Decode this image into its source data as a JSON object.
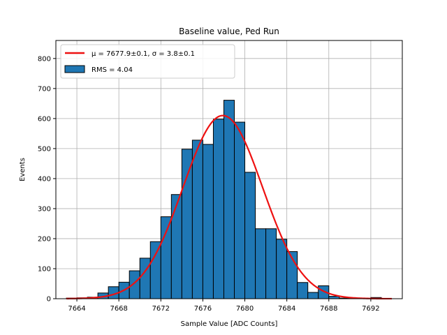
{
  "chart_data": {
    "type": "bar",
    "title": "Baseline value, Ped Run",
    "xlabel": "Sample Value [ADC Counts]",
    "ylabel": "Events",
    "xlim": [
      7662,
      7695
    ],
    "ylim": [
      0,
      860
    ],
    "grid": true,
    "xticks": [
      7664,
      7668,
      7672,
      7676,
      7680,
      7684,
      7688,
      7692
    ],
    "yticks": [
      0,
      100,
      200,
      300,
      400,
      500,
      600,
      700,
      800
    ],
    "bin_width": 1,
    "bins": [
      {
        "start": 7663,
        "value": 2
      },
      {
        "start": 7664,
        "value": 3
      },
      {
        "start": 7665,
        "value": 5
      },
      {
        "start": 7666,
        "value": 19
      },
      {
        "start": 7667,
        "value": 40
      },
      {
        "start": 7668,
        "value": 55
      },
      {
        "start": 7669,
        "value": 93
      },
      {
        "start": 7670,
        "value": 135
      },
      {
        "start": 7671,
        "value": 190
      },
      {
        "start": 7672,
        "value": 273
      },
      {
        "start": 7673,
        "value": 347
      },
      {
        "start": 7674,
        "value": 498
      },
      {
        "start": 7675,
        "value": 528
      },
      {
        "start": 7676,
        "value": 514
      },
      {
        "start": 7677,
        "value": 598
      },
      {
        "start": 7678,
        "value": 661
      },
      {
        "start": 7679,
        "value": 588
      },
      {
        "start": 7680,
        "value": 421
      },
      {
        "start": 7681,
        "value": 233
      },
      {
        "start": 7682,
        "value": 233
      },
      {
        "start": 7683,
        "value": 198
      },
      {
        "start": 7684,
        "value": 157
      },
      {
        "start": 7685,
        "value": 54
      },
      {
        "start": 7686,
        "value": 21
      },
      {
        "start": 7687,
        "value": 43
      },
      {
        "start": 7688,
        "value": 8
      },
      {
        "start": 7689,
        "value": 2
      },
      {
        "start": 7690,
        "value": 1
      },
      {
        "start": 7691,
        "value": 1
      },
      {
        "start": 7692,
        "value": 4
      }
    ],
    "fit": {
      "type": "gaussian",
      "mu": 7677.9,
      "sigma": 3.8,
      "amplitude": 610,
      "x_range": [
        7663,
        7694
      ],
      "color": "#ee1111"
    },
    "bar_color": "#1f77b4",
    "legend": {
      "position": "top-left",
      "entries": [
        {
          "kind": "line",
          "color": "#ee1111",
          "label_prefix": "μ = 7677.9±0.1, σ = 3.8±0.1"
        },
        {
          "kind": "patch",
          "color": "#1f77b4",
          "label": "RMS = 4.04"
        }
      ]
    }
  }
}
